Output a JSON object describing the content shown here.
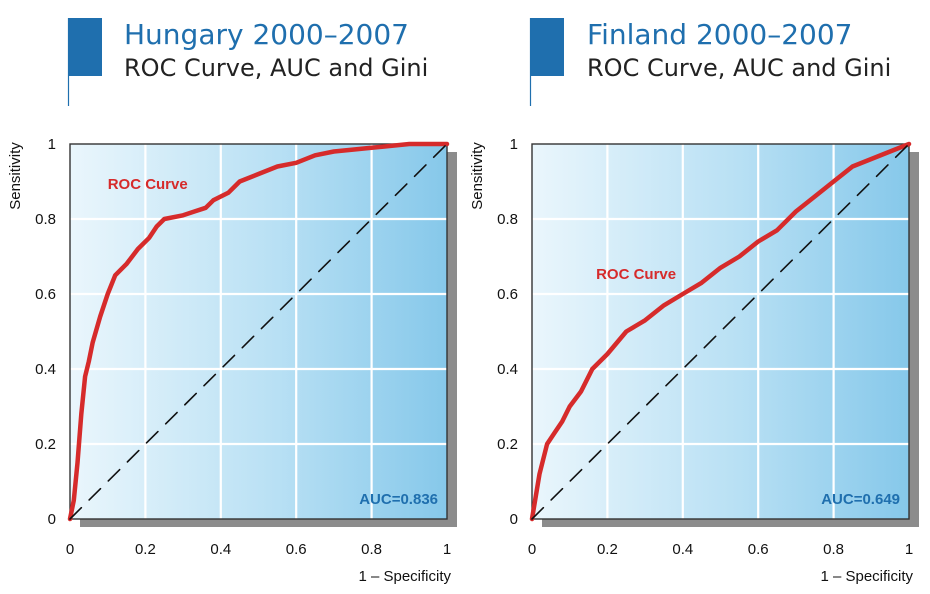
{
  "chart_data": [
    {
      "type": "line",
      "title": "Hungary 2000–2007",
      "subtitle": "ROC Curve, AUC and Gini",
      "xlabel": "1 – Specificity",
      "ylabel": "Sensitivity",
      "xlim": [
        0,
        1
      ],
      "ylim": [
        0,
        1
      ],
      "x_ticks": [
        "0",
        "0.2",
        "0.4",
        "0.6",
        "0.8",
        "1"
      ],
      "y_ticks": [
        "0",
        "0.2",
        "0.4",
        "0.6",
        "0.8",
        "1"
      ],
      "grid": true,
      "annotations": {
        "curve_label": "ROC Curve",
        "auc_label": "AUC=0.836"
      },
      "series": [
        {
          "name": "ROC Curve",
          "color": "#d62b2b",
          "x": [
            0,
            0.01,
            0.02,
            0.03,
            0.04,
            0.05,
            0.06,
            0.08,
            0.1,
            0.12,
            0.15,
            0.18,
            0.21,
            0.23,
            0.25,
            0.3,
            0.33,
            0.36,
            0.38,
            0.42,
            0.45,
            0.5,
            0.55,
            0.6,
            0.65,
            0.7,
            0.75,
            0.8,
            0.9,
            1.0
          ],
          "y": [
            0,
            0.05,
            0.15,
            0.28,
            0.38,
            0.42,
            0.47,
            0.54,
            0.6,
            0.65,
            0.68,
            0.72,
            0.75,
            0.78,
            0.8,
            0.81,
            0.82,
            0.83,
            0.85,
            0.87,
            0.9,
            0.92,
            0.94,
            0.95,
            0.97,
            0.98,
            0.985,
            0.99,
            1.0,
            1.0
          ]
        },
        {
          "name": "",
          "color": "#111111",
          "dashed": true,
          "x": [
            0,
            1
          ],
          "y": [
            0,
            1
          ]
        }
      ]
    },
    {
      "type": "line",
      "title": "Finland 2000–2007",
      "subtitle": "ROC Curve, AUC and Gini",
      "xlabel": "1 – Specificity",
      "ylabel": "Sensitivity",
      "xlim": [
        0,
        1
      ],
      "ylim": [
        0,
        1
      ],
      "x_ticks": [
        "0",
        "0.2",
        "0.4",
        "0.6",
        "0.8",
        "1"
      ],
      "y_ticks": [
        "0",
        "0.2",
        "0.4",
        "0.6",
        "0.8",
        "1"
      ],
      "grid": true,
      "annotations": {
        "curve_label": "ROC Curve",
        "auc_label": "AUC=0.649"
      },
      "series": [
        {
          "name": "ROC Curve",
          "color": "#d62b2b",
          "x": [
            0,
            0.02,
            0.04,
            0.06,
            0.08,
            0.1,
            0.13,
            0.16,
            0.2,
            0.25,
            0.3,
            0.35,
            0.4,
            0.45,
            0.5,
            0.55,
            0.6,
            0.65,
            0.7,
            0.75,
            0.8,
            0.85,
            0.9,
            0.95,
            1.0
          ],
          "y": [
            0,
            0.12,
            0.2,
            0.23,
            0.26,
            0.3,
            0.34,
            0.4,
            0.44,
            0.5,
            0.53,
            0.57,
            0.6,
            0.63,
            0.67,
            0.7,
            0.74,
            0.77,
            0.82,
            0.86,
            0.9,
            0.94,
            0.96,
            0.98,
            1.0
          ]
        },
        {
          "name": "",
          "color": "#111111",
          "dashed": true,
          "x": [
            0,
            1
          ],
          "y": [
            0,
            1
          ]
        }
      ]
    }
  ]
}
